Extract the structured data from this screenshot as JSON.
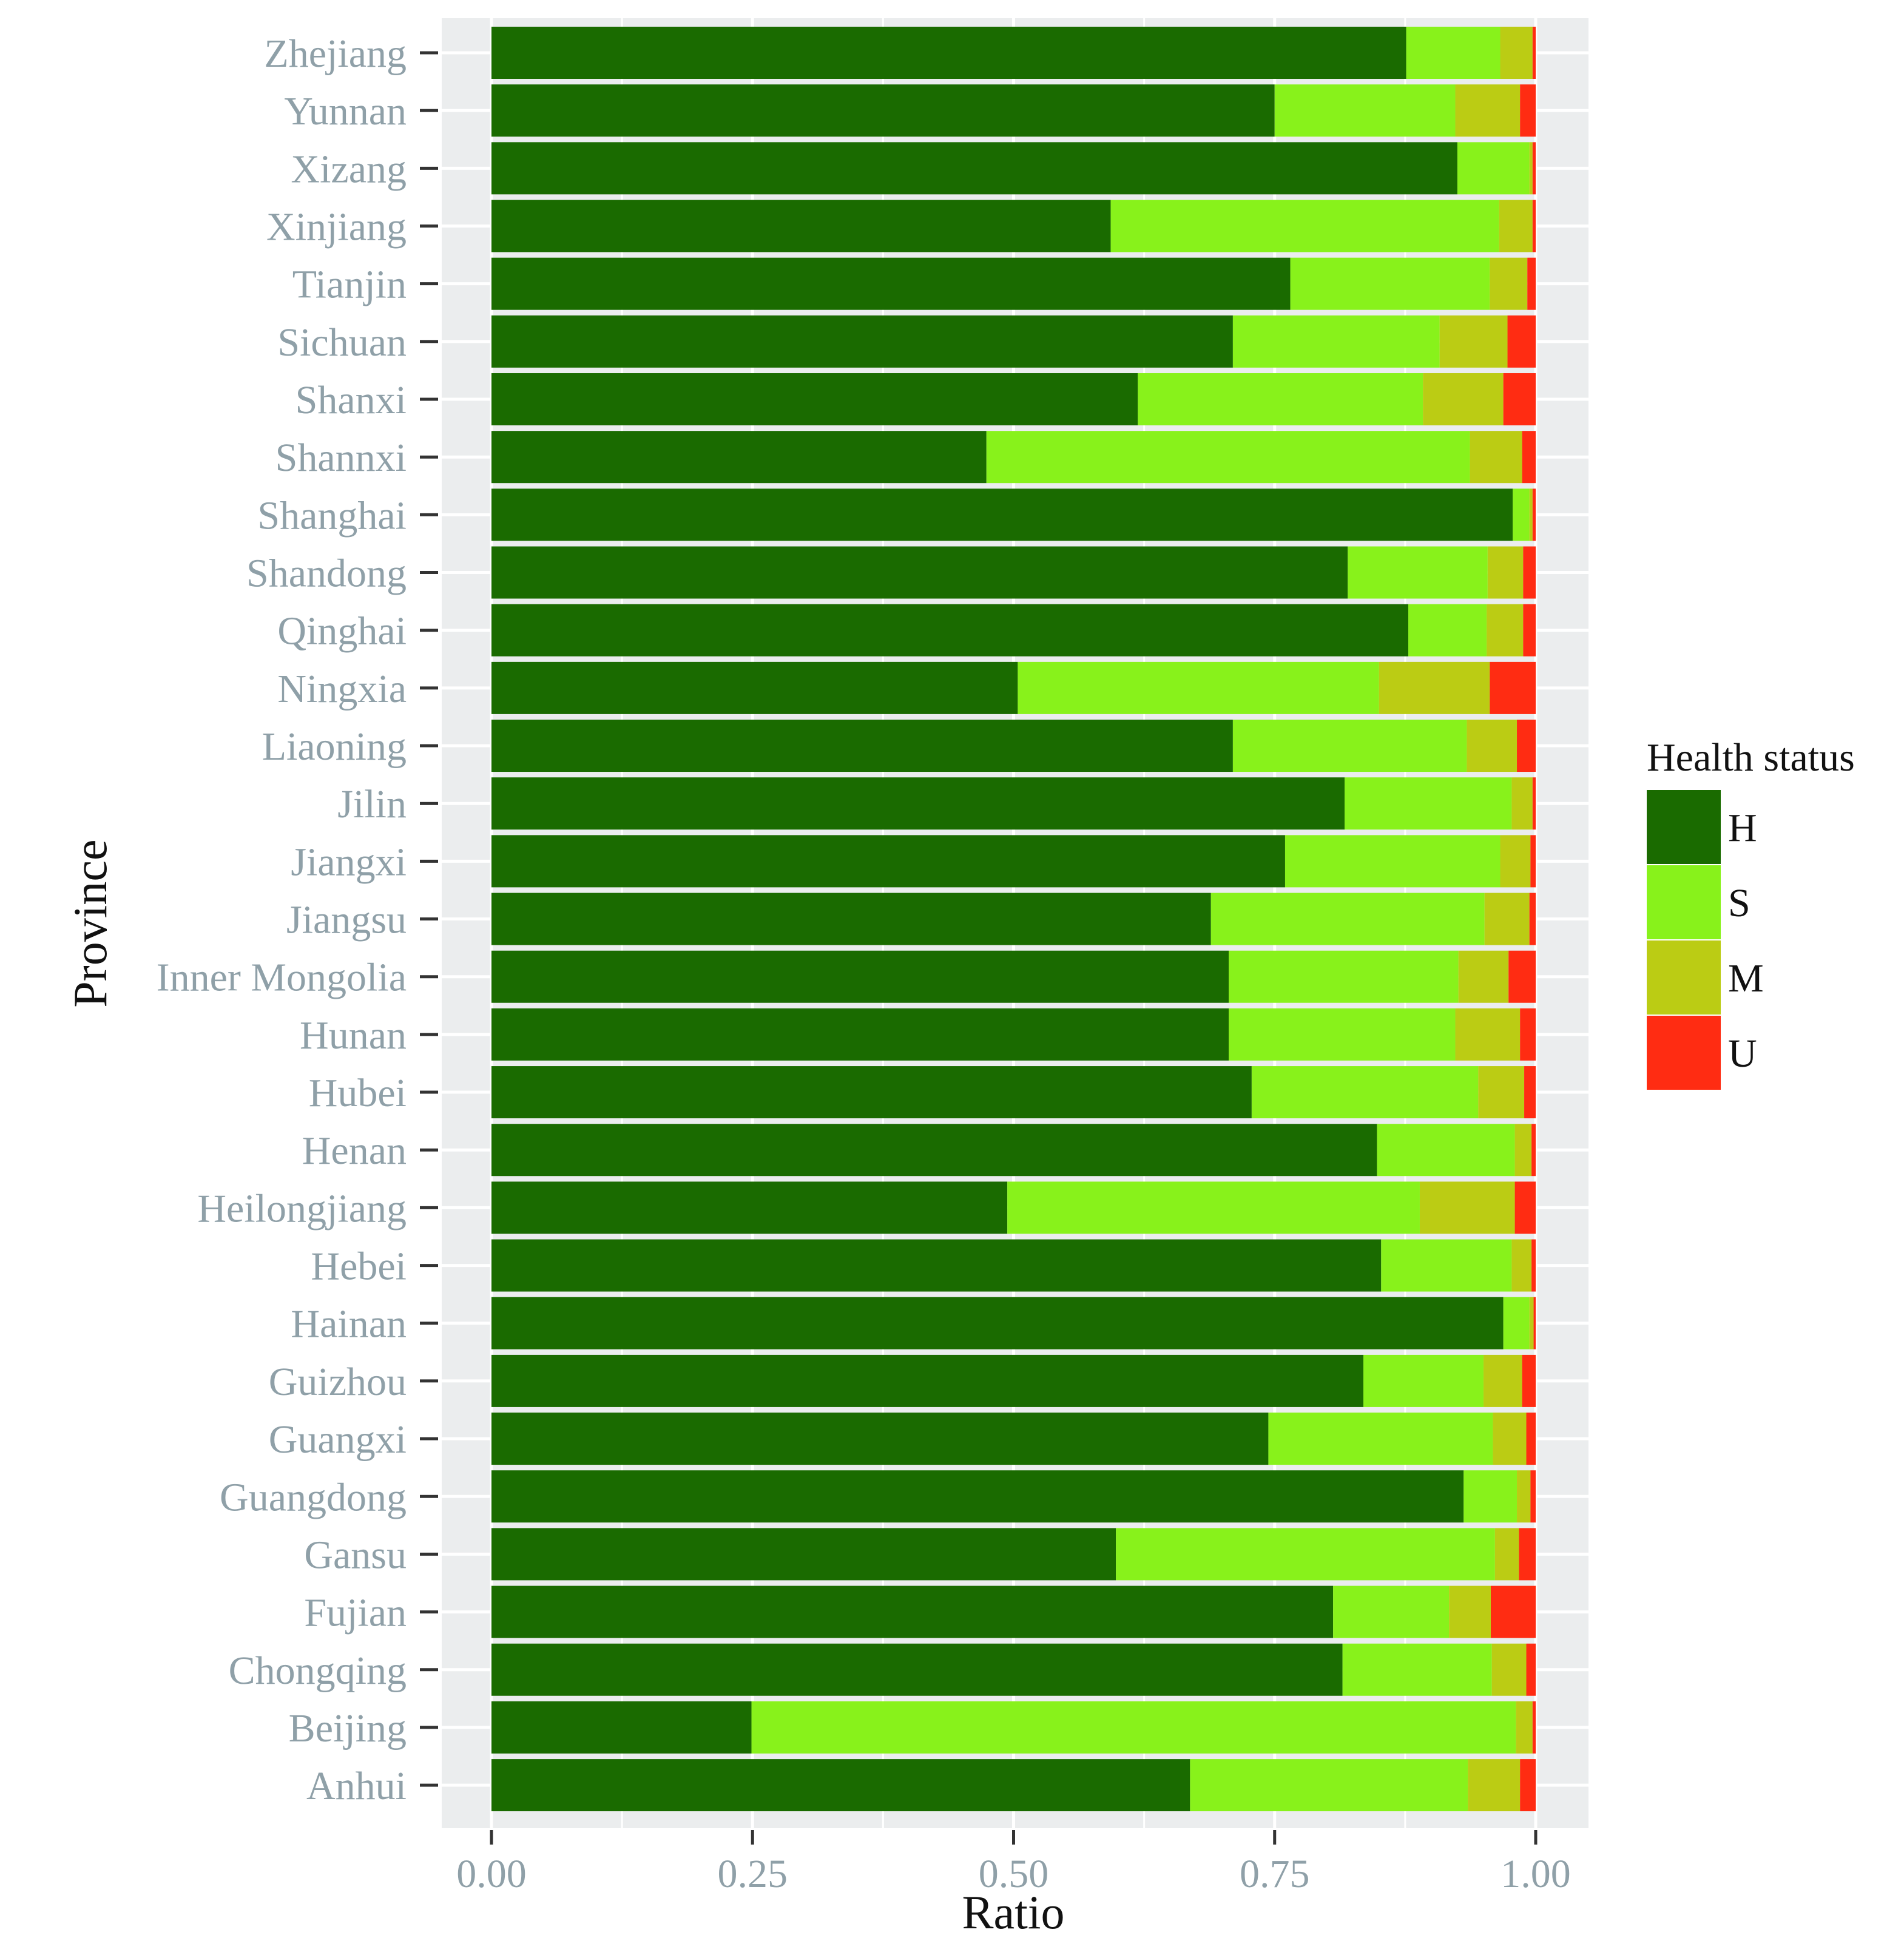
{
  "chart_data": {
    "type": "bar",
    "orientation": "horizontal",
    "stacked": true,
    "title": "",
    "xlabel": "Ratio",
    "ylabel": "Province",
    "xlim": [
      0,
      1
    ],
    "x_ticks": [
      0,
      0.25,
      0.5,
      0.75,
      1
    ],
    "x_tick_labels": [
      "0.00",
      "0.25",
      "0.50",
      "0.75",
      "1.00"
    ],
    "grid": true,
    "legend": {
      "title": "Health status",
      "placement": "right"
    },
    "categories": [
      "Zhejiang",
      "Yunnan",
      "Xizang",
      "Xinjiang",
      "Tianjin",
      "Sichuan",
      "Shanxi",
      "Shannxi",
      "Shanghai",
      "Shandong",
      "Qinghai",
      "Ningxia",
      "Liaoning",
      "Jilin",
      "Jiangxi",
      "Jiangsu",
      "Inner Mongolia",
      "Hunan",
      "Hubei",
      "Henan",
      "Heilongjiang",
      "Hebei",
      "Hainan",
      "Guizhou",
      "Guangxi",
      "Guangdong",
      "Gansu",
      "Fujian",
      "Chongqing",
      "Beijing",
      "Anhui"
    ],
    "series": [
      {
        "name": "H",
        "color": "#1a6b00",
        "values": [
          0.876,
          0.75,
          0.925,
          0.593,
          0.765,
          0.71,
          0.619,
          0.474,
          0.978,
          0.82,
          0.878,
          0.504,
          0.71,
          0.817,
          0.76,
          0.689,
          0.706,
          0.706,
          0.728,
          0.848,
          0.494,
          0.852,
          0.969,
          0.835,
          0.744,
          0.931,
          0.598,
          0.806,
          0.815,
          0.249,
          0.669
        ]
      },
      {
        "name": "S",
        "color": "#88f21b",
        "values": [
          0.09,
          0.173,
          0.069,
          0.372,
          0.191,
          0.198,
          0.273,
          0.463,
          0.016,
          0.134,
          0.075,
          0.346,
          0.224,
          0.16,
          0.206,
          0.262,
          0.22,
          0.217,
          0.217,
          0.132,
          0.395,
          0.125,
          0.025,
          0.115,
          0.215,
          0.051,
          0.363,
          0.111,
          0.143,
          0.732,
          0.266
        ]
      },
      {
        "name": "M",
        "color": "#bbcc14",
        "values": [
          0.031,
          0.062,
          0.003,
          0.032,
          0.036,
          0.065,
          0.077,
          0.05,
          0.003,
          0.034,
          0.035,
          0.106,
          0.048,
          0.02,
          0.029,
          0.043,
          0.048,
          0.062,
          0.044,
          0.016,
          0.091,
          0.019,
          0.004,
          0.037,
          0.032,
          0.013,
          0.023,
          0.04,
          0.033,
          0.016,
          0.05
        ]
      },
      {
        "name": "U",
        "color": "#ff2c12",
        "values": [
          0.003,
          0.015,
          0.003,
          0.003,
          0.008,
          0.027,
          0.031,
          0.013,
          0.003,
          0.012,
          0.012,
          0.044,
          0.018,
          0.003,
          0.005,
          0.006,
          0.026,
          0.015,
          0.011,
          0.004,
          0.02,
          0.004,
          0.002,
          0.013,
          0.009,
          0.005,
          0.016,
          0.043,
          0.009,
          0.003,
          0.015
        ]
      }
    ]
  }
}
